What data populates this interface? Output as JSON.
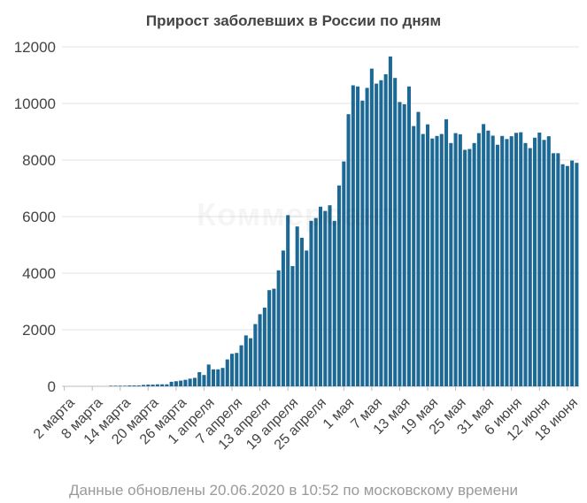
{
  "chart_data": {
    "type": "bar",
    "title": "Прирост заболевших в России по дням",
    "xlabel": "",
    "ylabel": "",
    "ylim": [
      0,
      12000
    ],
    "yticks": [
      0,
      2000,
      4000,
      6000,
      8000,
      10000,
      12000
    ],
    "grid": true,
    "legend": "none",
    "bar_color": "#1d6995",
    "categories": [
      "2 марта",
      "3 марта",
      "4 марта",
      "5 марта",
      "6 марта",
      "7 марта",
      "8 марта",
      "9 марта",
      "10 марта",
      "11 марта",
      "12 марта",
      "13 марта",
      "14 марта",
      "15 марта",
      "16 марта",
      "17 марта",
      "18 марта",
      "19 марта",
      "20 марта",
      "21 марта",
      "22 марта",
      "23 марта",
      "24 марта",
      "25 марта",
      "26 марта",
      "27 марта",
      "28 марта",
      "29 марта",
      "30 марта",
      "31 марта",
      "1 апреля",
      "2 апреля",
      "3 апреля",
      "4 апреля",
      "5 апреля",
      "6 апреля",
      "7 апреля",
      "8 апреля",
      "9 апреля",
      "10 апреля",
      "11 апреля",
      "12 апреля",
      "13 апреля",
      "14 апреля",
      "15 апреля",
      "16 апреля",
      "17 апреля",
      "18 апреля",
      "19 апреля",
      "20 апреля",
      "21 апреля",
      "22 апреля",
      "23 апреля",
      "24 апреля",
      "25 апреля",
      "26 апреля",
      "27 апреля",
      "28 апреля",
      "29 апреля",
      "30 апреля",
      "1 мая",
      "2 мая",
      "3 мая",
      "4 мая",
      "5 мая",
      "6 мая",
      "7 мая",
      "8 мая",
      "9 мая",
      "10 мая",
      "11 мая",
      "12 мая",
      "13 мая",
      "14 мая",
      "15 мая",
      "16 мая",
      "17 мая",
      "18 мая",
      "19 мая",
      "20 мая",
      "21 мая",
      "22 мая",
      "23 мая",
      "24 мая",
      "25 мая",
      "26 мая",
      "27 мая",
      "28 мая",
      "29 мая",
      "30 мая",
      "31 мая",
      "1 июня",
      "2 июня",
      "3 июня",
      "4 июня",
      "5 июня",
      "6 июня",
      "7 июня",
      "8 июня",
      "9 июня",
      "10 июня",
      "11 июня",
      "12 июня",
      "13 июня",
      "14 июня",
      "15 июня",
      "16 июня",
      "17 июня",
      "18 июня",
      "19 июня",
      "20 июня"
    ],
    "values": [
      0,
      0,
      0,
      0,
      0,
      0,
      0,
      0,
      0,
      0,
      20,
      20,
      20,
      20,
      30,
      30,
      30,
      50,
      60,
      60,
      70,
      70,
      70,
      160,
      180,
      200,
      230,
      270,
      300,
      500,
      400,
      770,
      600,
      600,
      650,
      950,
      1150,
      1180,
      1450,
      1800,
      1700,
      2200,
      2550,
      2780,
      3400,
      3450,
      4100,
      4800,
      6050,
      4250,
      5650,
      5250,
      4800,
      5850,
      5950,
      6350,
      6200,
      6400,
      5850,
      7100,
      7950,
      9620,
      10640,
      10600,
      10100,
      10550,
      11230,
      10700,
      10820,
      11030,
      11660,
      10900,
      10050,
      9970,
      10600,
      9200,
      9700,
      8920,
      9260,
      8760,
      8850,
      8920,
      9440,
      8600,
      8950,
      8910,
      8360,
      8390,
      8600,
      8950,
      9270,
      9040,
      8860,
      8540,
      8850,
      8740,
      8840,
      8960,
      8980,
      8600,
      8420,
      8790,
      8970,
      8710,
      8840,
      8240,
      8240,
      7850,
      7790,
      7980,
      7900
    ],
    "xtick_labels": [
      "2 марта",
      "8 марта",
      "14 марта",
      "20 марта",
      "26 марта",
      "1 апреля",
      "7 апреля",
      "13 апреля",
      "19 апреля",
      "25 апреля",
      "1 мая",
      "7 мая",
      "13 мая",
      "19 мая",
      "25 мая",
      "31 мая",
      "6 июня",
      "12 июня",
      "18 июня"
    ]
  },
  "watermark": "Коммерсант",
  "footnote": "Данные обновлены 20.06.2020 в 10:52 по московскому времени"
}
